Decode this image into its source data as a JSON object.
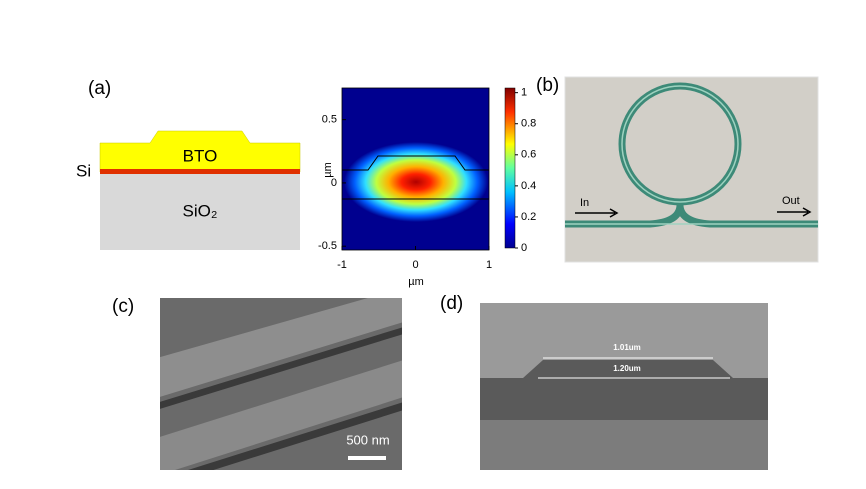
{
  "panel_a": {
    "label": "(a)",
    "cross_section": {
      "si": "Si",
      "bto": "BTO",
      "sio2": "SiO₂"
    },
    "mode_plot": {
      "xlim": [
        -1,
        1
      ],
      "xticks": [
        -1,
        0,
        1
      ],
      "ylim": [
        -0.53,
        0.75
      ],
      "yticks": [
        0.5,
        0,
        -0.5
      ],
      "xlabel": "µm",
      "ylabel": "µm",
      "colorbar": {
        "lim": [
          0,
          1.03
        ],
        "ticks": [
          1,
          0.8,
          0.6,
          0.4,
          0.2,
          0
        ]
      }
    }
  },
  "panel_b": {
    "label": "(b)",
    "input": "In",
    "output": "Out"
  },
  "panel_c": {
    "label": "(c)",
    "scale_bar": "500 nm"
  },
  "panel_d": {
    "label": "(d)",
    "top_width": "1.01um",
    "bottom_width": "1.20um"
  }
}
